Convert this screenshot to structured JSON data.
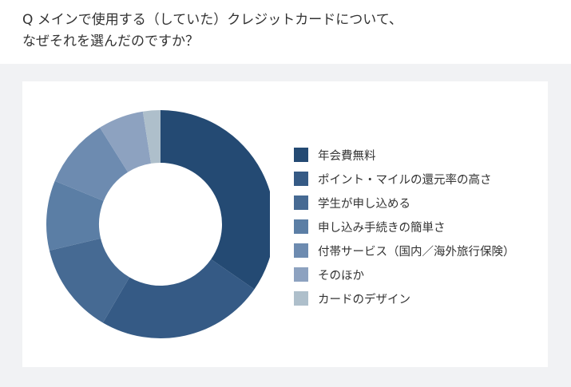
{
  "question": {
    "line1": "Q  メインで使用する（していた）クレジットカードについて、",
    "line2": "なぜそれを選んだのですか？"
  },
  "chart_data": {
    "type": "pie",
    "donut": true,
    "legend_position": "right",
    "categories": [
      "年会費無料",
      "ポイント・マイルの還元率の高さ",
      "学生が申し込める",
      "申し込み手続きの簡単さ",
      "付帯サービス（国内／海外旅行保険）",
      "そのほか",
      "カードのデザイン"
    ],
    "values": [
      35,
      24,
      13,
      10,
      10,
      6.5,
      2.5
    ],
    "colors": [
      "#244a73",
      "#355a85",
      "#466a93",
      "#5b7ea5",
      "#6d8bb0",
      "#8da2c0",
      "#aebfcb"
    ]
  }
}
